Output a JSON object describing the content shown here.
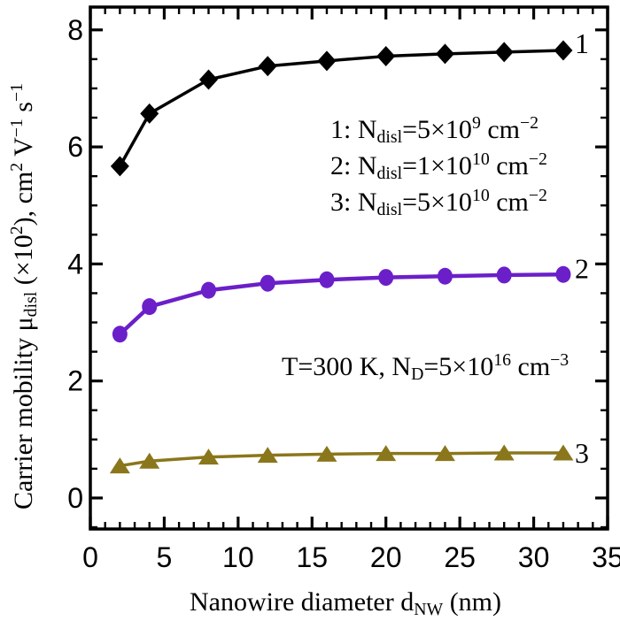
{
  "figure": {
    "background": "#ffffff",
    "frame_color": "#000000"
  },
  "chart_data": {
    "type": "line",
    "title": "",
    "xlabel": "Nanowire diameter d_NW (nm)",
    "ylabel": "Carrier mobility μ_disl (×10²), cm² V⁻¹ s⁻¹",
    "xlabel_rich": [
      {
        "t": "Nanowire diameter d"
      },
      {
        "t": "NW",
        "s": "sub"
      },
      {
        "t": " (nm)"
      }
    ],
    "ylabel_rich": [
      {
        "t": "Carrier mobility μ"
      },
      {
        "t": "disl",
        "s": "sub"
      },
      {
        "t": " (×10"
      },
      {
        "t": "2",
        "s": "sup"
      },
      {
        "t": "), cm"
      },
      {
        "t": "2",
        "s": "sup"
      },
      {
        "t": " V"
      },
      {
        "t": "−1",
        "s": "sup"
      },
      {
        "t": " s"
      },
      {
        "t": "−1",
        "s": "sup"
      }
    ],
    "annotation": "T=300 K, N_D=5×10^16 cm^-3",
    "annotation_rich": [
      {
        "t": "T=300 K, N"
      },
      {
        "t": "D",
        "s": "sub"
      },
      {
        "t": "=5×10"
      },
      {
        "t": "16",
        "s": "sup"
      },
      {
        "t": " cm"
      },
      {
        "t": "−3",
        "s": "sup"
      }
    ],
    "xlim": [
      0,
      35
    ],
    "ylim": [
      -0.53,
      8.39
    ],
    "x_ticks": [
      0,
      5,
      10,
      15,
      20,
      25,
      30,
      35
    ],
    "y_ticks": [
      0,
      2,
      4,
      6,
      8
    ],
    "x_minor_step": 1,
    "y_minor_step": 0.5,
    "grid": false,
    "legend_position": "inside-upper-middle",
    "x": [
      2,
      4,
      8,
      12,
      16,
      20,
      24,
      28,
      32
    ],
    "series": [
      {
        "curve_label": "1",
        "name": "1: Ndisl=5×10^9 cm^-2",
        "color": "#000000",
        "marker": "diamond",
        "values": [
          5.67,
          6.57,
          7.15,
          7.38,
          7.47,
          7.55,
          7.59,
          7.62,
          7.65
        ]
      },
      {
        "curve_label": "2",
        "name": "2: Ndisl=1×10^10 cm^-2",
        "color": "#6B1FC9",
        "marker": "circle",
        "values": [
          2.8,
          3.27,
          3.55,
          3.67,
          3.73,
          3.77,
          3.79,
          3.81,
          3.82
        ]
      },
      {
        "curve_label": "3",
        "name": "3: Ndisl=5×10^10 cm^-2",
        "color": "#8A771B",
        "marker": "triangle",
        "values": [
          0.55,
          0.63,
          0.7,
          0.73,
          0.75,
          0.76,
          0.76,
          0.77,
          0.77
        ]
      }
    ],
    "legend_entries_rich": [
      [
        {
          "t": "1: N"
        },
        {
          "t": "disl",
          "s": "sub"
        },
        {
          "t": "=5×10"
        },
        {
          "t": "9",
          "s": "sup"
        },
        {
          "t": " cm"
        },
        {
          "t": "−2",
          "s": "sup"
        }
      ],
      [
        {
          "t": "2: N"
        },
        {
          "t": "disl",
          "s": "sub"
        },
        {
          "t": "=1×10"
        },
        {
          "t": "10",
          "s": "sup"
        },
        {
          "t": " cm"
        },
        {
          "t": "−2",
          "s": "sup"
        }
      ],
      [
        {
          "t": "3: N"
        },
        {
          "t": "disl",
          "s": "sub"
        },
        {
          "t": "=5×10"
        },
        {
          "t": "10",
          "s": "sup"
        },
        {
          "t": " cm"
        },
        {
          "t": "−2",
          "s": "sup"
        }
      ]
    ]
  }
}
